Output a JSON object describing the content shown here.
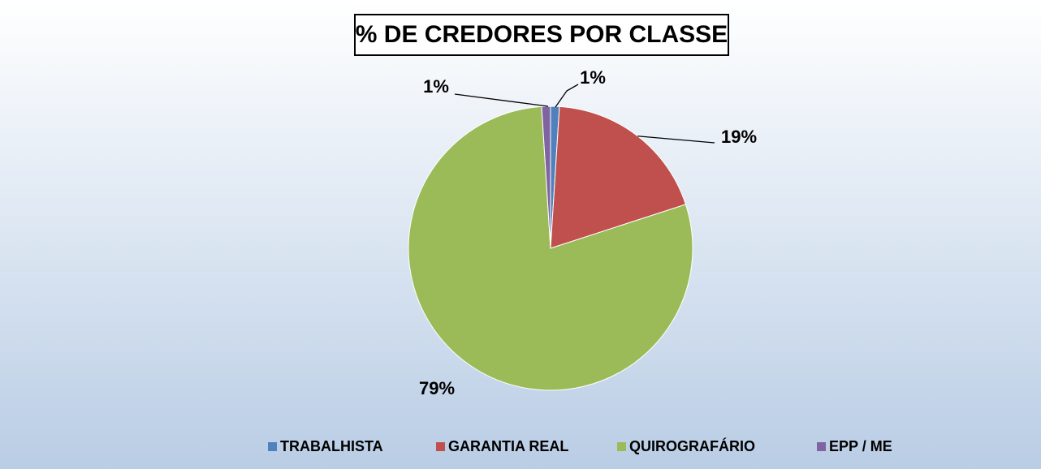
{
  "chart_data": {
    "type": "pie",
    "title": "% DE CREDORES POR CLASSE",
    "categories": [
      "TRABALHISTA",
      "GARANTIA REAL",
      "QUIROGRAFÁRIO",
      "EPP / ME"
    ],
    "values": [
      1,
      19,
      79,
      1
    ],
    "value_labels": [
      "1%",
      "19%",
      "79%",
      "1%"
    ],
    "colors": [
      "#4f81bd",
      "#c0504d",
      "#9bbb59",
      "#8064a2"
    ],
    "legend": "bottom"
  }
}
